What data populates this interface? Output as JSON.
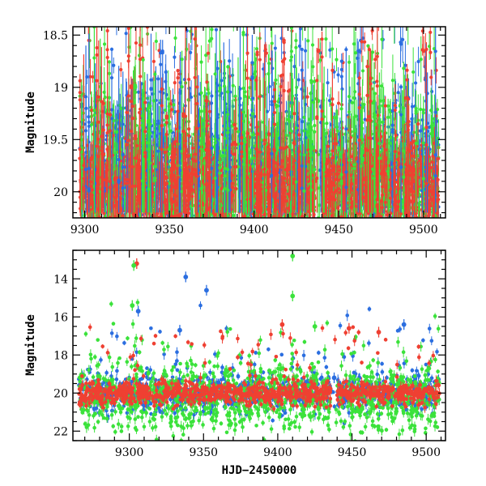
{
  "chart_data": [
    {
      "type": "scatter",
      "panel": "top",
      "title": "",
      "xlabel": "",
      "ylabel": "Magnitude",
      "xlim": [
        9293,
        9513
      ],
      "ylim": [
        20.25,
        18.42
      ],
      "y_inverted": true,
      "x_ticks": [
        9300,
        9350,
        9400,
        9450,
        9500
      ],
      "y_ticks": [
        18.5,
        19,
        19.5,
        20
      ],
      "y_tick_labels": [
        "18.5",
        "19",
        "19.5",
        "20"
      ],
      "grid": false,
      "legend": "none",
      "series": [
        {
          "color": "#2b6ee0",
          "n_points": 1500,
          "baseline_mag": 19.9,
          "scatter_sigma": 0.35,
          "errbar_sigma": 0.12
        },
        {
          "color": "#3be23b",
          "n_points": 1500,
          "baseline_mag": 19.9,
          "scatter_sigma": 0.38,
          "errbar_sigma": 0.14
        },
        {
          "color": "#ef4032",
          "n_points": 1500,
          "baseline_mag": 19.95,
          "scatter_sigma": 0.22,
          "errbar_sigma": 0.1
        }
      ],
      "features": [
        {
          "x": 9438,
          "y": 18.65,
          "color": "#ef4032",
          "note_kind": "short outburst"
        }
      ],
      "gaps_x": [
        [
          9388,
          9392
        ],
        [
          9436,
          9440
        ]
      ]
    },
    {
      "type": "scatter",
      "panel": "bottom",
      "title": "",
      "xlabel": "HJD−2450000",
      "ylabel": "Magnitude",
      "xlim": [
        9262,
        9513
      ],
      "ylim": [
        22.5,
        12.5
      ],
      "y_inverted": true,
      "x_ticks": [
        9300,
        9350,
        9400,
        9450,
        9500
      ],
      "y_ticks": [
        14,
        16,
        18,
        20,
        22
      ],
      "y_tick_labels": [
        "14",
        "16",
        "18",
        "20",
        "22"
      ],
      "grid": false,
      "legend": "none",
      "series": [
        {
          "color": "#2b6ee0",
          "n_points": 1000,
          "baseline_mag": 20.0,
          "scatter_sigma": 0.5
        },
        {
          "color": "#3be23b",
          "n_points": 1200,
          "baseline_mag": 20.2,
          "scatter_sigma": 0.9
        },
        {
          "color": "#ef4032",
          "n_points": 1000,
          "baseline_mag": 20.0,
          "scatter_sigma": 0.3
        }
      ],
      "bright_outliers": [
        {
          "x": 9305,
          "y": 13.2,
          "color": "#ef4032"
        },
        {
          "x": 9303,
          "y": 13.3,
          "color": "#3be23b"
        },
        {
          "x": 9302,
          "y": 15.4,
          "color": "#3be23b"
        },
        {
          "x": 9306,
          "y": 15.7,
          "color": "#2b6ee0"
        },
        {
          "x": 9338,
          "y": 13.9,
          "color": "#2b6ee0"
        },
        {
          "x": 9352,
          "y": 14.6,
          "color": "#2b6ee0"
        },
        {
          "x": 9410,
          "y": 12.8,
          "color": "#3be23b"
        },
        {
          "x": 9410,
          "y": 14.9,
          "color": "#3be23b"
        },
        {
          "x": 9334,
          "y": 16.7,
          "color": "#2b6ee0"
        },
        {
          "x": 9485,
          "y": 16.4,
          "color": "#2b6ee0"
        },
        {
          "x": 9403,
          "y": 16.4,
          "color": "#ef4032"
        },
        {
          "x": 9425,
          "y": 16.5,
          "color": "#3be23b"
        },
        {
          "x": 9448,
          "y": 16.6,
          "color": "#ef4032"
        },
        {
          "x": 9468,
          "y": 16.8,
          "color": "#ef4032"
        }
      ],
      "features": [
        {
          "x": 9438,
          "y": 19.2,
          "color": "#2b6ee0",
          "note_kind": "step in light curve"
        }
      ],
      "gaps_x": [
        [
          9436,
          9440
        ]
      ]
    }
  ]
}
